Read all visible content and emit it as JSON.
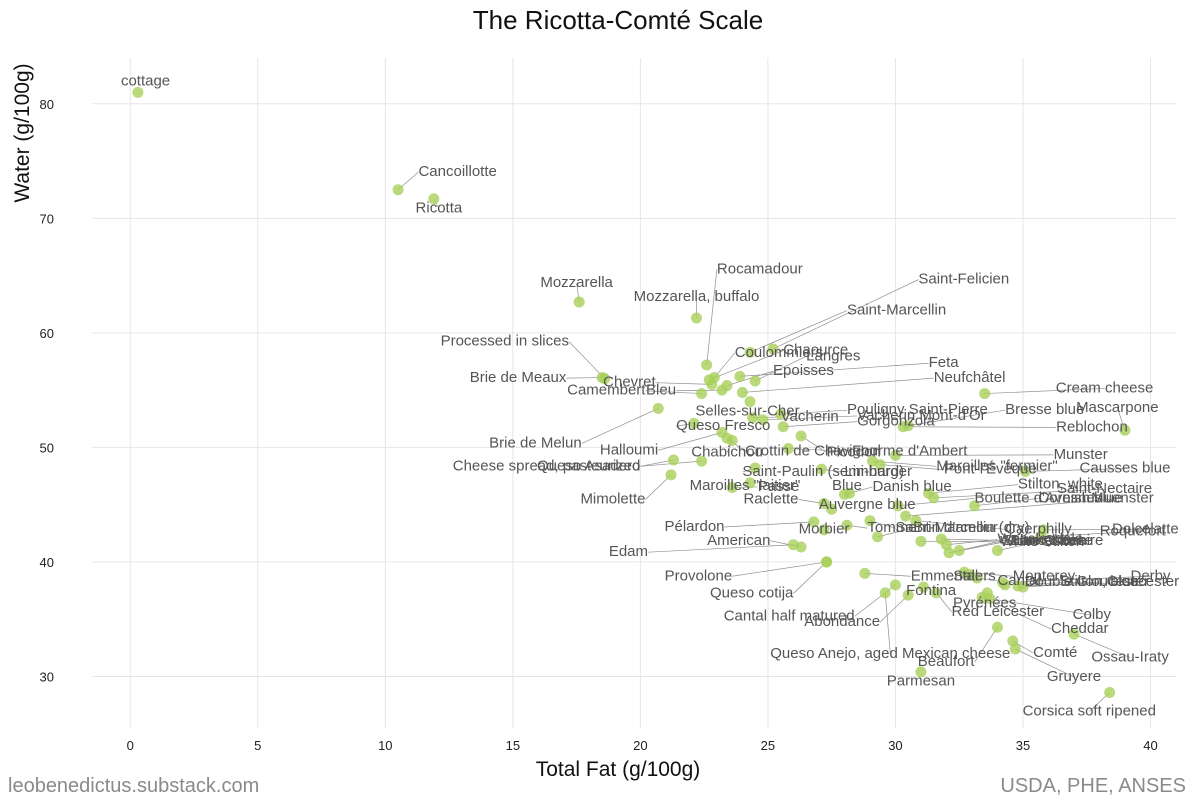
{
  "chart_data": {
    "type": "scatter",
    "title": "The Ricotta-Comté Scale",
    "xlabel": "Total Fat (g/100g)",
    "ylabel": "Water (g/100g)",
    "xlim": [
      -1.5,
      41
    ],
    "ylim": [
      25.5,
      84
    ],
    "xticks": [
      0,
      5,
      10,
      15,
      20,
      25,
      30,
      35,
      40
    ],
    "yticks": [
      30,
      40,
      50,
      60,
      70,
      80
    ],
    "grid": true,
    "point_color": "#a8cf5a",
    "points": [
      {
        "label": "cottage",
        "x": 0.3,
        "y": 81.0,
        "lx": 0.6,
        "ly": 81.6
      },
      {
        "label": "Cancoillotte",
        "x": 10.5,
        "y": 72.5,
        "lx": 11.3,
        "ly": 73.7
      },
      {
        "label": "Ricotta",
        "x": 11.9,
        "y": 71.7,
        "lx": 12.1,
        "ly": 70.5
      },
      {
        "label": "Mozzarella",
        "x": 17.6,
        "y": 62.7,
        "lx": 17.5,
        "ly": 64.0
      },
      {
        "label": "Mozzarella, buffalo",
        "x": 22.2,
        "y": 61.3,
        "lx": 22.2,
        "ly": 62.8
      },
      {
        "label": "Rocamadour",
        "x": 22.6,
        "y": 57.2,
        "lx": 23.0,
        "ly": 65.2
      },
      {
        "label": "Saint-Felicien",
        "x": 25.2,
        "y": 58.6,
        "lx": 30.9,
        "ly": 64.3
      },
      {
        "label": "Saint-Marcellin",
        "x": 24.3,
        "y": 58.3,
        "lx": 28.1,
        "ly": 61.6
      },
      {
        "label": "Processed in slices",
        "x": 18.6,
        "y": 56.0,
        "lx": 17.2,
        "ly": 58.9
      },
      {
        "label": "Coulommiers",
        "x": 22.9,
        "y": 56.1,
        "lx": 23.7,
        "ly": 57.9
      },
      {
        "label": "Chaource",
        "x": 22.7,
        "y": 55.9,
        "lx": 25.6,
        "ly": 58.1
      },
      {
        "label": "Langres",
        "x": 24.5,
        "y": 55.8,
        "lx": 26.5,
        "ly": 57.6
      },
      {
        "label": "Feta",
        "x": 23.9,
        "y": 56.2,
        "lx": 31.3,
        "ly": 57.0
      },
      {
        "label": "Epoisses",
        "x": 23.4,
        "y": 55.4,
        "lx": 25.2,
        "ly": 56.3
      },
      {
        "label": "Neufchâtel",
        "x": 24.0,
        "y": 54.8,
        "lx": 31.5,
        "ly": 55.7
      },
      {
        "label": "Brie de Meaux",
        "x": 18.5,
        "y": 56.1,
        "lx": 17.1,
        "ly": 55.7
      },
      {
        "label": "Chevret",
        "x": 22.8,
        "y": 55.5,
        "lx": 20.6,
        "ly": 55.3
      },
      {
        "label": "Camembert",
        "x": 22.4,
        "y": 54.7,
        "lx": 20.2,
        "ly": 54.6
      },
      {
        "label": "Bleu",
        "x": 23.2,
        "y": 55.0,
        "lx": 21.4,
        "ly": 54.6
      },
      {
        "label": "Cream cheese",
        "x": 33.5,
        "y": 54.7,
        "lx": 38.2,
        "ly": 54.8
      },
      {
        "label": "Mascarpone",
        "x": 39.0,
        "y": 51.5,
        "lx": 38.7,
        "ly": 53.1
      },
      {
        "label": "Selles-sur-Cher",
        "x": 24.3,
        "y": 54.0,
        "lx": 24.2,
        "ly": 52.8
      },
      {
        "label": "Pouligny Saint-Pierre",
        "x": 25.5,
        "y": 52.9,
        "lx": 28.1,
        "ly": 52.9
      },
      {
        "label": "Bresse blue",
        "x": 30.5,
        "y": 51.9,
        "lx": 34.3,
        "ly": 52.9
      },
      {
        "label": "Vacherin",
        "x": 24.4,
        "y": 52.6,
        "lx": 25.5,
        "ly": 52.3
      },
      {
        "label": "Vacherin Mont-d'Or",
        "x": 24.8,
        "y": 52.4,
        "lx": 28.5,
        "ly": 52.4
      },
      {
        "label": "Gorgonzola",
        "x": 25.6,
        "y": 51.8,
        "lx": 28.5,
        "ly": 51.9
      },
      {
        "label": "Queso Fresco",
        "x": 22.1,
        "y": 52.1,
        "lx": 21.4,
        "ly": 51.5
      },
      {
        "label": "Reblochon",
        "x": 30.3,
        "y": 51.8,
        "lx": 36.3,
        "ly": 51.4
      },
      {
        "label": "Brie de Melun",
        "x": 20.7,
        "y": 53.4,
        "lx": 17.7,
        "ly": 50.0
      },
      {
        "label": "Halloumi",
        "x": 23.2,
        "y": 51.3,
        "lx": 20.7,
        "ly": 49.4
      },
      {
        "label": "Crottin de Chavignol",
        "x": 23.4,
        "y": 50.8,
        "lx": 24.1,
        "ly": 49.3
      },
      {
        "label": "Chabichou",
        "x": 23.6,
        "y": 50.6,
        "lx": 23.4,
        "ly": 49.2
      },
      {
        "label": "Picodon",
        "x": 26.3,
        "y": 51.0,
        "lx": 27.3,
        "ly": 49.2
      },
      {
        "label": "Fourme d'Ambert",
        "x": 25.8,
        "y": 49.9,
        "lx": 28.3,
        "ly": 49.3
      },
      {
        "label": "Munster",
        "x": 30.0,
        "y": 49.3,
        "lx": 36.2,
        "ly": 49.0
      },
      {
        "label": "Cheese spread, pasteurized",
        "x": 21.3,
        "y": 48.9,
        "lx": 20.0,
        "ly": 48.0
      },
      {
        "label": "Queso Asadero",
        "x": 22.4,
        "y": 48.8,
        "lx": 20.0,
        "ly": 48.0
      },
      {
        "label": "Maroilles \"fermier\"",
        "x": 29.1,
        "y": 48.8,
        "lx": 31.6,
        "ly": 48.0
      },
      {
        "label": "Pont-l'Évêque",
        "x": 29.4,
        "y": 48.5,
        "lx": 31.9,
        "ly": 47.7
      },
      {
        "label": "Saint-Paulin (semi-hard)",
        "x": 24.5,
        "y": 48.2,
        "lx": 24.0,
        "ly": 47.5
      },
      {
        "label": "Limburger",
        "x": 27.1,
        "y": 48.1,
        "lx": 28.0,
        "ly": 47.5
      },
      {
        "label": "Causses blue",
        "x": 35.1,
        "y": 47.9,
        "lx": 39.0,
        "ly": 47.8
      },
      {
        "label": "Mimolette",
        "x": 21.2,
        "y": 47.6,
        "lx": 20.2,
        "ly": 45.1
      },
      {
        "label": "Maroilles \"laitier\"",
        "x": 24.3,
        "y": 46.9,
        "lx": 24.1,
        "ly": 46.3
      },
      {
        "label": "Passe",
        "x": 23.6,
        "y": 46.5,
        "lx": 24.6,
        "ly": 46.2
      },
      {
        "label": "Danish blue",
        "x": 28.2,
        "y": 46.0,
        "lx": 29.1,
        "ly": 46.2
      },
      {
        "label": "Blue",
        "x": 28.0,
        "y": 45.9,
        "lx": 28.1,
        "ly": 46.3
      },
      {
        "label": "Stilton, white",
        "x": 31.3,
        "y": 46.0,
        "lx": 34.8,
        "ly": 46.4
      },
      {
        "label": "Saint-Nectaire",
        "x": 31.5,
        "y": 45.6,
        "lx": 38.2,
        "ly": 46.0
      },
      {
        "label": "Raclette",
        "x": 27.2,
        "y": 45.1,
        "lx": 26.2,
        "ly": 45.1
      },
      {
        "label": "Auvergne blue",
        "x": 27.5,
        "y": 44.6,
        "lx": 27.0,
        "ly": 44.6
      },
      {
        "label": "Boulette d'Avesnes",
        "x": 30.1,
        "y": 44.9,
        "lx": 33.1,
        "ly": 45.2
      },
      {
        "label": "Cornish blue",
        "x": 33.1,
        "y": 44.9,
        "lx": 35.6,
        "ly": 45.2
      },
      {
        "label": "Muenster",
        "x": 30.4,
        "y": 44.0,
        "lx": 38.9,
        "ly": 45.2
      },
      {
        "label": "Pélardon",
        "x": 26.8,
        "y": 43.5,
        "lx": 23.3,
        "ly": 42.7
      },
      {
        "label": "Morbier",
        "x": 27.2,
        "y": 42.8,
        "lx": 27.2,
        "ly": 42.5
      },
      {
        "label": "Tomme",
        "x": 28.1,
        "y": 43.2,
        "lx": 28.9,
        "ly": 42.6
      },
      {
        "label": "Saint-Marcellin (dry)",
        "x": 29.0,
        "y": 43.6,
        "lx": 30.0,
        "ly": 42.6
      },
      {
        "label": "Brin d'amour",
        "x": 29.3,
        "y": 42.2,
        "lx": 30.7,
        "ly": 42.6
      },
      {
        "label": "Caerphilly",
        "x": 30.8,
        "y": 43.6,
        "lx": 34.3,
        "ly": 42.5
      },
      {
        "label": "Lancashire",
        "x": 31.8,
        "y": 42.0,
        "lx": 34.6,
        "ly": 41.5
      },
      {
        "label": "Dolcelatte",
        "x": 35.8,
        "y": 42.8,
        "lx": 39.8,
        "ly": 42.5
      },
      {
        "label": "Roquefort",
        "x": 35.7,
        "y": 42.2,
        "lx": 39.3,
        "ly": 42.3
      },
      {
        "label": "American",
        "x": 26.3,
        "y": 41.3,
        "lx": 25.1,
        "ly": 41.5
      },
      {
        "label": "White Stilton",
        "x": 31.0,
        "y": 41.8,
        "lx": 34.1,
        "ly": 41.4
      },
      {
        "label": "Wensleydale",
        "x": 32.0,
        "y": 41.5,
        "lx": 34.0,
        "ly": 41.6
      },
      {
        "label": "Stilton",
        "x": 32.5,
        "y": 41.0,
        "lx": 34.2,
        "ly": 41.5
      },
      {
        "label": "Blue cheese",
        "x": 32.1,
        "y": 40.8,
        "lx": 34.5,
        "ly": 41.5
      },
      {
        "label": "Cheshire",
        "x": 34.0,
        "y": 41.0,
        "lx": 35.8,
        "ly": 41.5
      },
      {
        "label": "Edam",
        "x": 26.0,
        "y": 41.5,
        "lx": 20.3,
        "ly": 40.5
      },
      {
        "label": "Provolone",
        "x": 27.3,
        "y": 40.0,
        "lx": 23.6,
        "ly": 38.4
      },
      {
        "label": "Queso cotija",
        "x": 27.3,
        "y": 40.0,
        "lx": 26.0,
        "ly": 36.9
      },
      {
        "label": "Emmental",
        "x": 28.8,
        "y": 39.0,
        "lx": 30.6,
        "ly": 38.4
      },
      {
        "label": "Monterey",
        "x": 32.7,
        "y": 39.1,
        "lx": 34.6,
        "ly": 38.4
      },
      {
        "label": "Salers",
        "x": 32.9,
        "y": 38.9,
        "lx": 33.1,
        "ly": 38.4
      },
      {
        "label": "Cantal",
        "x": 33.2,
        "y": 38.6,
        "lx": 34.0,
        "ly": 38.0
      },
      {
        "label": "Derby",
        "x": 34.2,
        "y": 38.2,
        "lx": 40.0,
        "ly": 38.4
      },
      {
        "label": "Double Gloucester",
        "x": 34.3,
        "y": 38.0,
        "lx": 37.5,
        "ly": 37.9
      },
      {
        "label": "Stilton, blue",
        "x": 35.0,
        "y": 37.8,
        "lx": 38.0,
        "ly": 37.9
      },
      {
        "label": "Gloucester",
        "x": 34.8,
        "y": 37.9,
        "lx": 39.7,
        "ly": 37.9
      },
      {
        "label": "Fontina",
        "x": 31.1,
        "y": 37.8,
        "lx": 31.4,
        "ly": 37.1
      },
      {
        "label": "Cantal half matured",
        "x": 30.0,
        "y": 38.0,
        "lx": 28.4,
        "ly": 34.9
      },
      {
        "label": "Abondance",
        "x": 30.5,
        "y": 37.1,
        "lx": 29.4,
        "ly": 34.4
      },
      {
        "label": "Red Leicester",
        "x": 31.6,
        "y": 37.3,
        "lx": 32.2,
        "ly": 35.3
      },
      {
        "label": "Pyrénées",
        "x": 33.6,
        "y": 37.3,
        "lx": 33.5,
        "ly": 36.0
      },
      {
        "label": "Colby",
        "x": 33.7,
        "y": 36.8,
        "lx": 37.7,
        "ly": 35.0
      },
      {
        "label": "Cheddar",
        "x": 33.4,
        "y": 36.9,
        "lx": 36.1,
        "ly": 33.8
      },
      {
        "label": "Ossau-Iraty",
        "x": 37.0,
        "y": 33.7,
        "lx": 39.2,
        "ly": 31.3
      },
      {
        "label": "Queso Anejo, aged Mexican cheese",
        "x": 29.6,
        "y": 37.3,
        "lx": 29.8,
        "ly": 31.6
      },
      {
        "label": "Beaufort",
        "x": 34.0,
        "y": 34.3,
        "lx": 33.1,
        "ly": 30.9
      },
      {
        "label": "Comté",
        "x": 34.6,
        "y": 33.1,
        "lx": 35.4,
        "ly": 31.7
      },
      {
        "label": "Gruyere",
        "x": 34.7,
        "y": 32.4,
        "lx": 37.0,
        "ly": 29.6
      },
      {
        "label": "Parmesan",
        "x": 31.0,
        "y": 30.4,
        "lx": 31.0,
        "ly": 29.2
      },
      {
        "label": "Corsica soft ripened",
        "x": 38.4,
        "y": 28.6,
        "lx": 37.6,
        "ly": 26.6
      }
    ]
  },
  "footer": {
    "left": "leobenedictus.substack.com",
    "right": "USDA, PHE, ANSES"
  }
}
